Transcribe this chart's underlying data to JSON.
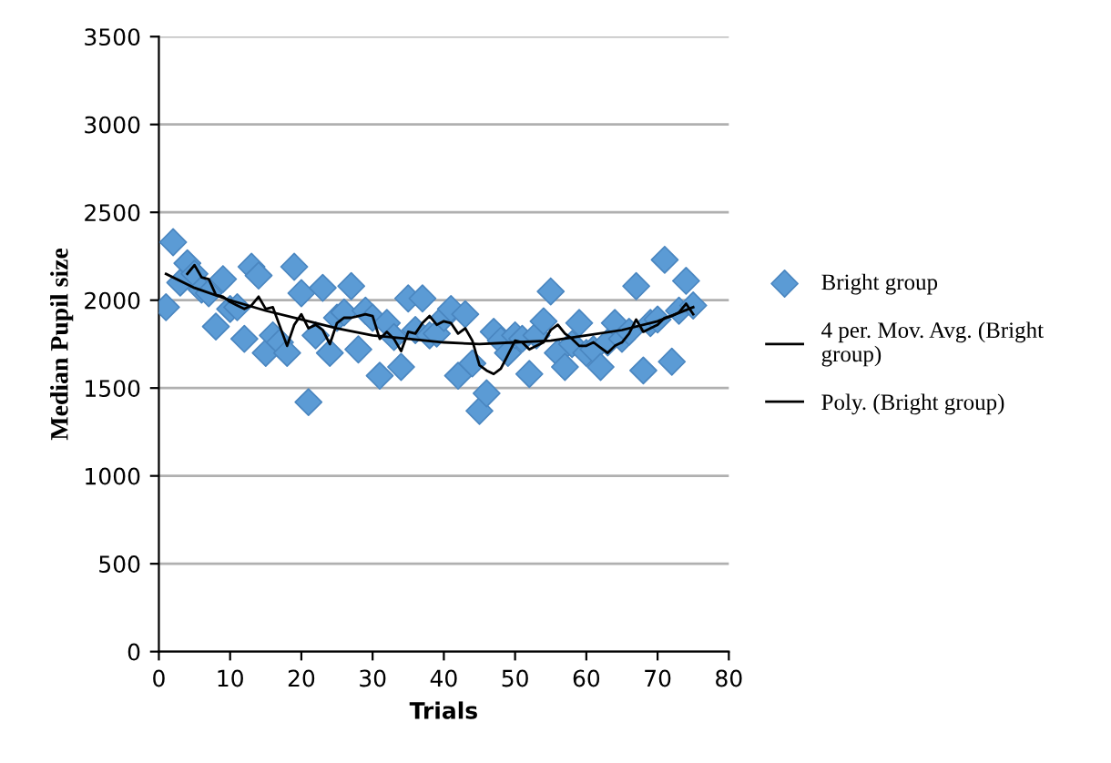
{
  "chart_data": {
    "type": "scatter",
    "xlabel": "Trials",
    "ylabel": "Median Pupil size",
    "xlim": [
      0,
      80
    ],
    "xticks": [
      0,
      10,
      20,
      30,
      40,
      50,
      60,
      70,
      80
    ],
    "ylim": [
      0,
      3500
    ],
    "yticks": [
      0,
      500,
      1000,
      1500,
      2000,
      2500,
      3000,
      3500
    ],
    "grid": "y",
    "legend": "right",
    "marker": "diamond",
    "series": [
      {
        "name": "Bright group",
        "color": "#5b9bd5",
        "x": [
          1,
          2,
          3,
          4,
          5,
          6,
          7,
          8,
          9,
          10,
          11,
          12,
          13,
          14,
          15,
          16,
          17,
          18,
          19,
          20,
          21,
          22,
          23,
          24,
          25,
          26,
          27,
          28,
          29,
          30,
          31,
          32,
          33,
          34,
          35,
          36,
          37,
          38,
          39,
          40,
          41,
          42,
          43,
          44,
          45,
          46,
          47,
          48,
          49,
          50,
          51,
          52,
          53,
          54,
          55,
          56,
          57,
          58,
          59,
          60,
          61,
          62,
          63,
          64,
          65,
          66,
          67,
          68,
          69,
          70,
          71,
          72,
          73,
          74,
          75
        ],
        "values": [
          1960,
          2330,
          2100,
          2210,
          2150,
          2060,
          2040,
          1850,
          2120,
          1950,
          1960,
          1780,
          2190,
          2140,
          1700,
          1800,
          1760,
          1700,
          2190,
          2040,
          1420,
          1800,
          2070,
          1700,
          1900,
          1930,
          2080,
          1720,
          1940,
          1900,
          1570,
          1870,
          1790,
          1620,
          2010,
          1830,
          2010,
          1800,
          1810,
          1900,
          1950,
          1570,
          1920,
          1640,
          1370,
          1470,
          1820,
          1770,
          1700,
          1800,
          1780,
          1580,
          1800,
          1880,
          2050,
          1700,
          1620,
          1750,
          1870,
          1700,
          1720,
          1620,
          1760,
          1870,
          1780,
          1820,
          2080,
          1600,
          1870,
          1890,
          2230,
          1650,
          1940,
          2110,
          1970
        ]
      },
      {
        "name": "4 per. Mov. Avg. (Bright group)",
        "type": "line",
        "color": "#000000",
        "marker": "none",
        "x": [
          4,
          5,
          6,
          7,
          8,
          9,
          10,
          11,
          12,
          13,
          14,
          15,
          16,
          17,
          18,
          19,
          20,
          21,
          22,
          23,
          24,
          25,
          26,
          27,
          28,
          29,
          30,
          31,
          32,
          33,
          34,
          35,
          36,
          37,
          38,
          39,
          40,
          41,
          42,
          43,
          44,
          45,
          46,
          47,
          48,
          49,
          50,
          51,
          52,
          53,
          54,
          55,
          56,
          57,
          58,
          59,
          60,
          61,
          62,
          63,
          64,
          65,
          66,
          67,
          68,
          69,
          70,
          71,
          72,
          73,
          74,
          75
        ],
        "values": [
          2150,
          2200,
          2130,
          2120,
          2030,
          2020,
          1990,
          1970,
          1950,
          1970,
          2020,
          1950,
          1960,
          1850,
          1740,
          1860,
          1920,
          1840,
          1860,
          1830,
          1750,
          1870,
          1900,
          1900,
          1910,
          1920,
          1910,
          1780,
          1820,
          1780,
          1710,
          1820,
          1810,
          1870,
          1910,
          1860,
          1880,
          1870,
          1810,
          1840,
          1770,
          1630,
          1600,
          1580,
          1610,
          1690,
          1770,
          1760,
          1720,
          1740,
          1760,
          1830,
          1860,
          1810,
          1780,
          1740,
          1740,
          1760,
          1730,
          1700,
          1740,
          1760,
          1810,
          1890,
          1820,
          1840,
          1860,
          1900,
          1910,
          1930,
          1980,
          1920
        ]
      },
      {
        "name": "Poly. (Bright group)",
        "type": "line",
        "color": "#000000",
        "marker": "none",
        "x": [
          1,
          5,
          10,
          15,
          20,
          25,
          30,
          35,
          40,
          45,
          50,
          55,
          60,
          65,
          70,
          75
        ],
        "values": [
          2150,
          2070,
          2000,
          1940,
          1890,
          1840,
          1800,
          1780,
          1760,
          1750,
          1760,
          1770,
          1800,
          1830,
          1880,
          1960
        ]
      }
    ]
  }
}
